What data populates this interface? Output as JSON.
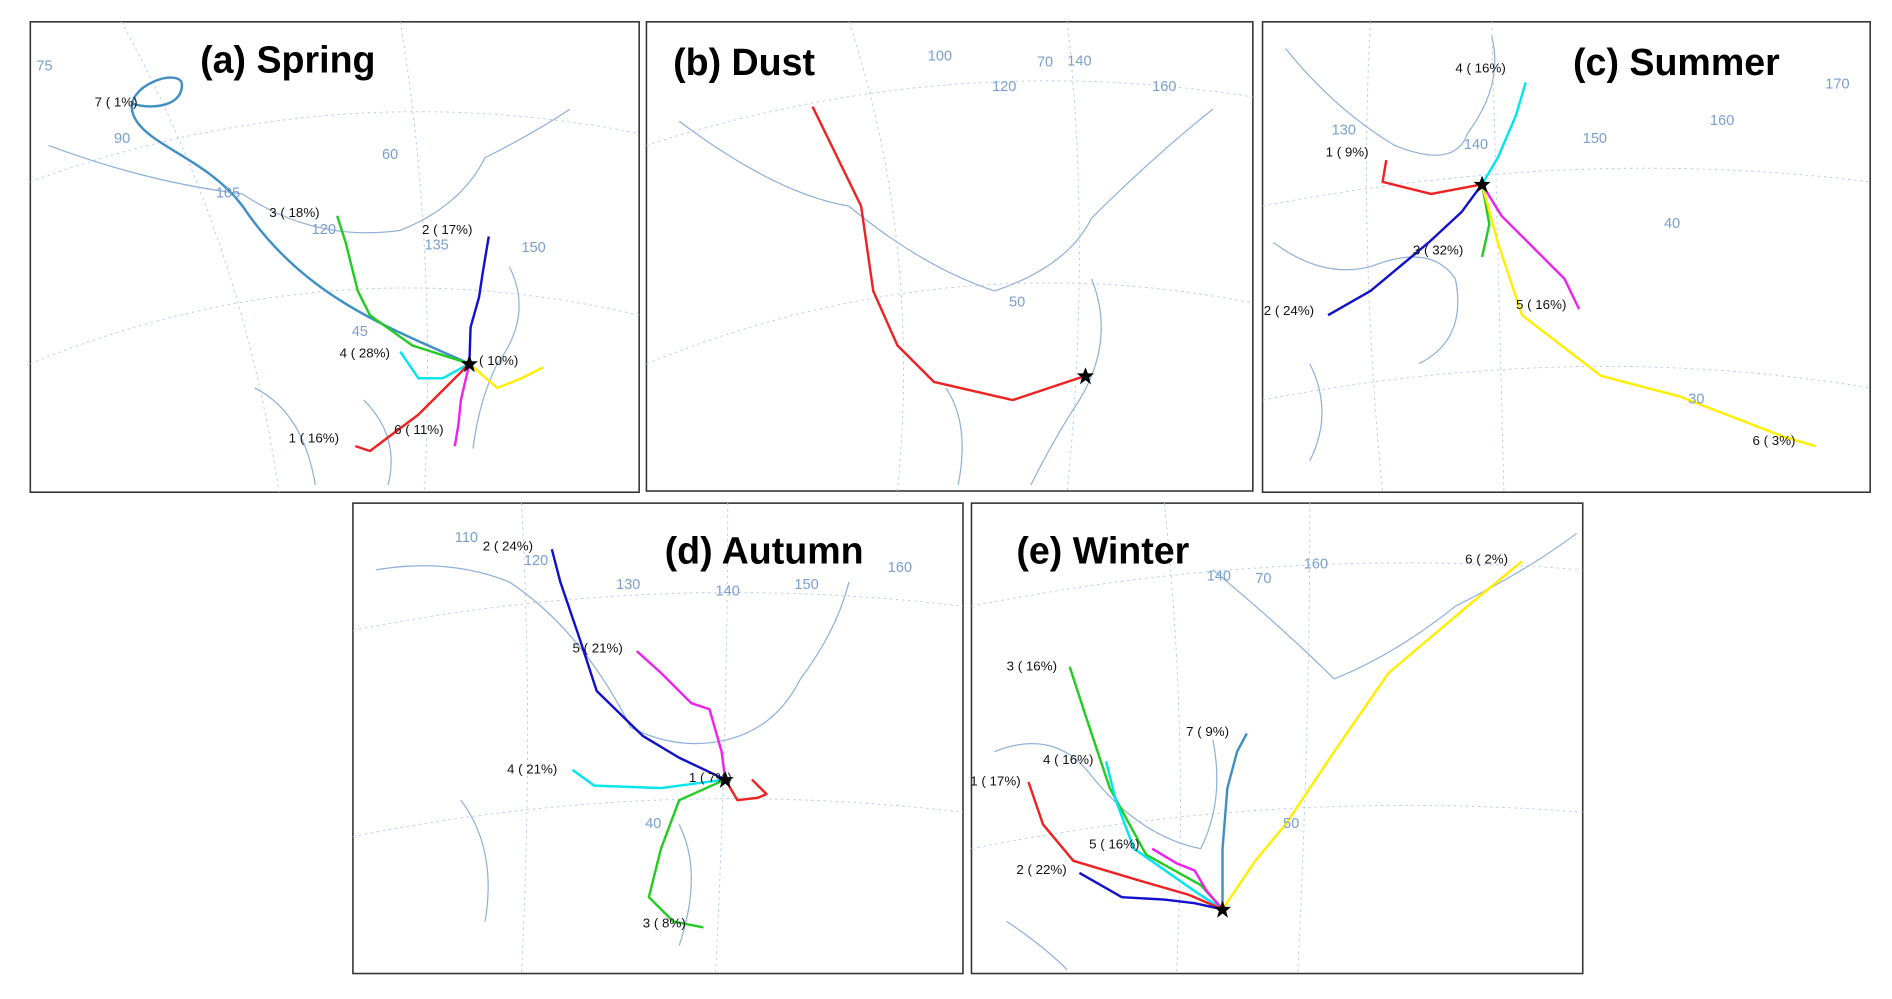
{
  "panels": [
    {
      "title": "(a) Spring",
      "clusters": [
        "7 ( 1%)",
        "3 ( 18%)",
        "2 ( 17%)",
        "4 ( 28%)",
        "( 10%)",
        "1 ( 16%)",
        "6 ( 11%)"
      ],
      "grid_labels": [
        "75",
        "90",
        "105",
        "120",
        "135",
        "150",
        "60",
        "45"
      ]
    },
    {
      "title": "(b) Dust",
      "clusters": [],
      "grid_labels": [
        "100",
        "120",
        "70",
        "140",
        "160",
        "50"
      ]
    },
    {
      "title": "(c) Summer",
      "clusters": [
        "4 ( 16%)",
        "1 ( 9%)",
        "2 ( 24%)",
        "3 ( 32%)",
        "5 ( 16%)",
        "6 ( 3%)"
      ],
      "grid_labels": [
        "130",
        "140",
        "150",
        "160",
        "170",
        "40",
        "30"
      ]
    },
    {
      "title": "(d) Autumn",
      "clusters": [
        "2 ( 24%)",
        "5 ( 21%)",
        "4 ( 21%)",
        "1 ( 7%)",
        "3 ( 8%)"
      ],
      "grid_labels": [
        "110",
        "120",
        "130",
        "140",
        "150",
        "160",
        "40"
      ]
    },
    {
      "title": "(e) Winter",
      "clusters": [
        "6 ( 2%)",
        "7 ( 9%)",
        "3 ( 16%)",
        "4 ( 16%)",
        "5 ( 16%)",
        "1 ( 17%)",
        "2 ( 22%)"
      ],
      "grid_labels": [
        "140",
        "70",
        "160",
        "50"
      ]
    }
  ]
}
